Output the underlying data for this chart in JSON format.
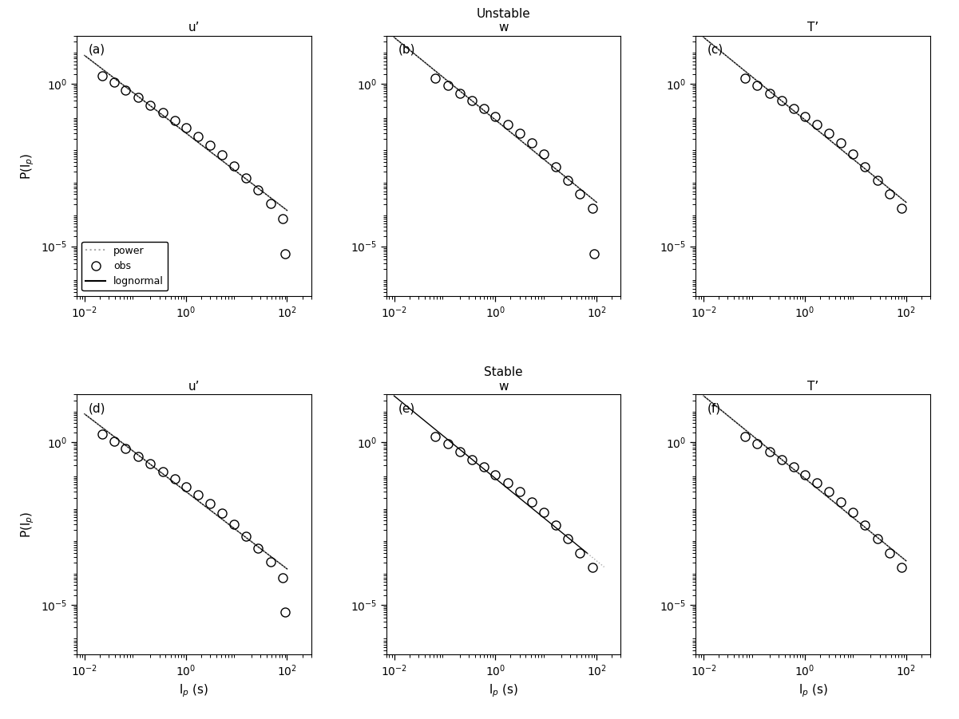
{
  "title_unstable": "Unstable",
  "title_stable": "Stable",
  "col_titles_top": [
    "u’",
    "w",
    "T’"
  ],
  "col_titles_bottom": [
    "u’",
    "w",
    "T’"
  ],
  "panel_labels": [
    "(a)",
    "(b)",
    "(c)",
    "(d)",
    "(e)",
    "(f)"
  ],
  "ylabel": "P(l$_p$)",
  "xlabel": "l$_p$ (s)",
  "xlim": [
    0.007,
    300
  ],
  "ylim": [
    3e-07,
    30
  ],
  "xtick_locs": [
    0.01,
    1.0,
    100.0
  ],
  "ytick_locs": [
    1e-05,
    1.0
  ],
  "bg_color": "#ffffff",
  "obs_color": "#000000",
  "ln_color": "#000000",
  "pw_color": "#aaaaaa",
  "obs_ms": 8,
  "ln_lw": 1.0,
  "pw_lw": 1.0,
  "panels": {
    "unstable_u": {
      "obs_x": [
        0.022,
        0.038,
        0.065,
        0.115,
        0.2,
        0.35,
        0.6,
        1.0,
        1.75,
        3.0,
        5.2,
        9.0,
        15.5,
        27.0,
        47.0,
        82.0,
        90.0
      ],
      "obs_y": [
        1.8,
        1.1,
        0.65,
        0.38,
        0.22,
        0.128,
        0.075,
        0.044,
        0.024,
        0.013,
        0.0065,
        0.003,
        0.0013,
        0.00055,
        0.00021,
        7e-05,
        6e-06
      ],
      "outlier_idx": 16,
      "slope": -1.48,
      "intercept": -0.35,
      "ln_xmin_log": -2,
      "ln_xmax_log": 2,
      "pw_xmin_log": -2,
      "pw_xmax_log": 2
    },
    "unstable_w": {
      "obs_x": [
        0.065,
        0.115,
        0.2,
        0.35,
        0.6,
        1.0,
        1.75,
        3.0,
        5.2,
        9.0,
        15.5,
        27.0,
        47.0,
        82.0,
        90.0
      ],
      "obs_y": [
        1.5,
        0.9,
        0.52,
        0.3,
        0.175,
        0.1,
        0.056,
        0.03,
        0.015,
        0.007,
        0.0028,
        0.0011,
        0.0004,
        0.000145,
        6e-06
      ],
      "outlier_idx": 14,
      "slope": -1.48,
      "intercept": -0.35,
      "ln_xmin_log": -2,
      "ln_xmax_log": 2,
      "pw_xmin_log": -2,
      "pw_xmax_log": 2
    },
    "unstable_T": {
      "obs_x": [
        0.065,
        0.115,
        0.2,
        0.35,
        0.6,
        1.0,
        1.75,
        3.0,
        5.2,
        9.0,
        15.5,
        27.0,
        47.0,
        82.0
      ],
      "obs_y": [
        1.5,
        0.9,
        0.52,
        0.3,
        0.175,
        0.1,
        0.056,
        0.03,
        0.015,
        0.007,
        0.0028,
        0.0011,
        0.0004,
        0.000145
      ],
      "outlier_idx": -1,
      "slope": -1.48,
      "intercept": -0.35,
      "ln_xmin_log": -2,
      "ln_xmax_log": 2,
      "pw_xmin_log": -2,
      "pw_xmax_log": 2
    },
    "stable_u": {
      "obs_x": [
        0.022,
        0.038,
        0.065,
        0.115,
        0.2,
        0.35,
        0.6,
        1.0,
        1.75,
        3.0,
        5.2,
        9.0,
        15.5,
        27.0,
        47.0,
        82.0,
        90.0
      ],
      "obs_y": [
        1.8,
        1.1,
        0.65,
        0.38,
        0.22,
        0.128,
        0.075,
        0.044,
        0.024,
        0.013,
        0.0065,
        0.003,
        0.0013,
        0.00055,
        0.00021,
        7e-05,
        6e-06
      ],
      "outlier_idx": 16,
      "slope": -1.48,
      "intercept": -0.35,
      "ln_xmin_log": -2,
      "ln_xmax_log": 2,
      "pw_xmin_log": -2,
      "pw_xmax_log": 2
    },
    "stable_w": {
      "obs_x": [
        0.065,
        0.115,
        0.2,
        0.35,
        0.6,
        1.0,
        1.75,
        3.0,
        5.2,
        9.0,
        15.5,
        27.0,
        47.0,
        82.0
      ],
      "obs_y": [
        1.5,
        0.9,
        0.52,
        0.3,
        0.175,
        0.1,
        0.056,
        0.03,
        0.015,
        0.007,
        0.0028,
        0.0011,
        0.0004,
        0.000145
      ],
      "outlier_idx": -1,
      "slope": -1.48,
      "intercept": -0.35,
      "ln_xmin_log": -2,
      "ln_xmax_log": 1.82,
      "pw_xmin_log": 1.82,
      "pw_xmax_log": 2.15
    },
    "stable_T": {
      "obs_x": [
        0.065,
        0.115,
        0.2,
        0.35,
        0.6,
        1.0,
        1.75,
        3.0,
        5.2,
        9.0,
        15.5,
        27.0,
        47.0,
        82.0
      ],
      "obs_y": [
        1.5,
        0.9,
        0.52,
        0.3,
        0.175,
        0.1,
        0.056,
        0.03,
        0.015,
        0.007,
        0.0028,
        0.0011,
        0.0004,
        0.000145
      ],
      "outlier_idx": -1,
      "slope": -1.48,
      "intercept": -0.35,
      "ln_xmin_log": -2,
      "ln_xmax_log": 2,
      "pw_xmin_log": -2,
      "pw_xmax_log": 2
    }
  }
}
